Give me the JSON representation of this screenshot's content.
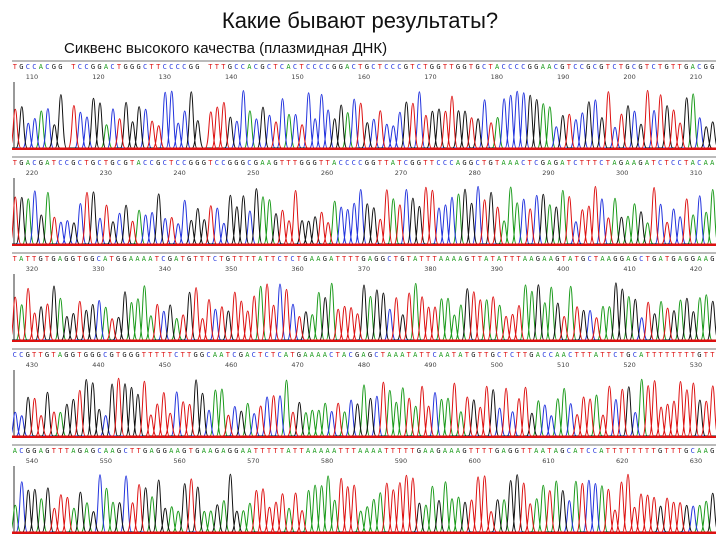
{
  "slide": {
    "title": "Какие бывают результаты?",
    "subtitle": "Сиквенс высокого качества (плазмидная ДНК)"
  },
  "colors": {
    "A": "#1a9a1a",
    "C": "#2233dd",
    "G": "#111111",
    "T": "#dd1111",
    "baseline": "#dd1111"
  },
  "panels": [
    {
      "sequence": "TGCCACGG TCCGGACTGGGCTTCCCCGG TTTGCCACGCTCACTCCCCGGACTGCTCCCGTCTGGTTGGTGCTACCCCGGAACGTCCGCGTCTGCGTCTGTTGACGG",
      "positions": [
        "110",
        "120",
        "130",
        "140",
        "150",
        "160",
        "170",
        "180",
        "190",
        "200",
        "210"
      ]
    },
    {
      "sequence": "TGACGATCCGCTGCTGCGTACCGCTCCGGGTCCGGGCGAAGTTTGGGTTACCCCGGTTATCGGTTCCCAGGCTGTAAACTCGAGATCTTTCTAGAAGATCTCCTACAA",
      "positions": [
        "220",
        "230",
        "240",
        "250",
        "260",
        "270",
        "280",
        "290",
        "300",
        "310"
      ]
    },
    {
      "sequence": "TATTGTGAGGTGGCATGGAAAATCGATGTTTCTGTTTTATTCTCTGAAGATTTTGAGGCTGTATTTAAAAGTTATATTTAAGAAGTATGCTAAGGAGCTGATGAGGAAG",
      "positions": [
        "320",
        "330",
        "340",
        "350",
        "360",
        "370",
        "380",
        "390",
        "400",
        "410",
        "420"
      ]
    },
    {
      "sequence": "CCGTTGTAGGTGGGCGTGGGTTTTTCTTGGCAATCGACTCTCATGAAAACTACGAGCTAAATATTCAATATGTTGCTCTTGACCAACTTTATTCTGCATTTTTTTTGTT",
      "positions": [
        "430",
        "440",
        "450",
        "460",
        "470",
        "480",
        "490",
        "500",
        "510",
        "520",
        "530"
      ]
    },
    {
      "sequence": "ACGGAGTTTAGAGCAAGCTTGAGGAAGTGAAGAGGAATTTTTATTAAAAATTTAAAATTTTTGAAGAAAGTTTTGAGGTTAATAGCATCCATTTTTTTTGTTTGCAAG",
      "positions": [
        "540",
        "550",
        "560",
        "570",
        "580",
        "590",
        "600",
        "610",
        "620",
        "630"
      ]
    }
  ]
}
